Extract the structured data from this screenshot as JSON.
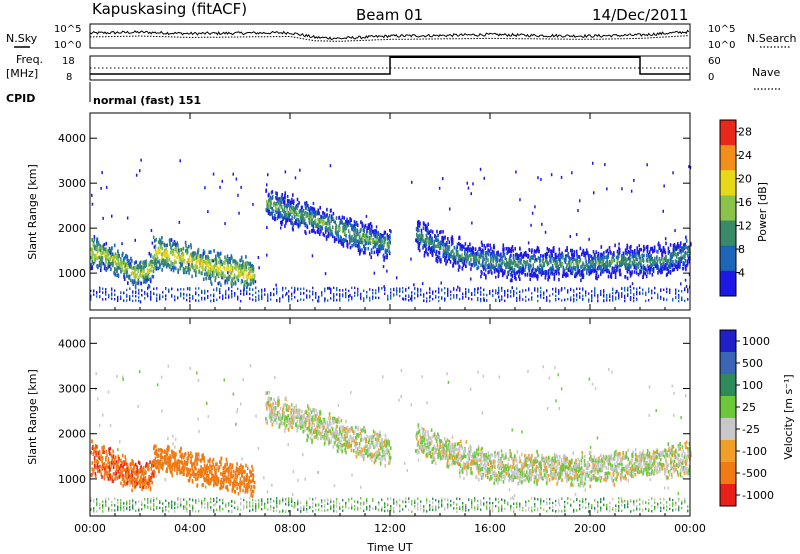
{
  "header": {
    "station": "Kapuskasing (fitACF)",
    "beam": "Beam 01",
    "date": "14/Dec/2011"
  },
  "strips": {
    "nsky_label": "N.Sky",
    "nsearch_label": "N.Search",
    "noise_ticks": [
      "10^5",
      "10^0"
    ],
    "freq_label": "Freq.",
    "freq_unit": "[MHz]",
    "freq_ticks": [
      "18",
      "8"
    ],
    "nave_label": "Nave",
    "nave_ticks": [
      "60",
      "0"
    ],
    "cpid_label": "CPID",
    "cpid_value": "normal (fast) 151"
  },
  "panels": {
    "ylabel": "Slant Range [km]",
    "xlabel": "Time UT"
  },
  "colorbars": {
    "power_label": "Power [dB]",
    "velocity_label": "Velocity [m s⁻¹]"
  },
  "chart_data": [
    {
      "type": "line",
      "panel": "noise",
      "series": [
        {
          "name": "N.Sky",
          "style": "solid"
        },
        {
          "name": "N.Search",
          "style": "dotted"
        }
      ],
      "x": [
        0,
        2,
        4,
        6,
        8,
        9,
        10,
        12,
        14,
        16,
        18,
        20,
        22,
        24
      ],
      "sky": [
        3.1,
        3.3,
        3.0,
        3.1,
        3.2,
        2.2,
        2.0,
        2.5,
        2.6,
        2.8,
        2.6,
        2.5,
        2.7,
        3.4
      ],
      "search": [
        2.3,
        2.5,
        2.2,
        2.3,
        2.4,
        1.5,
        1.4,
        1.8,
        1.9,
        2.0,
        1.9,
        1.8,
        2.0,
        2.6
      ],
      "ylim": [
        0,
        5
      ],
      "yscale": "log"
    },
    {
      "type": "line",
      "panel": "frequency",
      "series": [
        {
          "name": "Freq.",
          "style": "solid"
        },
        {
          "name": "Nave",
          "style": "dotted"
        }
      ],
      "x": [
        0,
        12,
        12,
        22,
        22,
        24
      ],
      "freq_mhz": [
        10.5,
        10.5,
        17.5,
        17.5,
        10.5,
        10.5
      ],
      "nave": [
        30,
        30,
        30,
        30,
        30,
        30
      ],
      "ylim": [
        8,
        18
      ],
      "y2lim": [
        0,
        60
      ]
    },
    {
      "type": "heatmap",
      "panel": "power",
      "xlabel": "Time UT",
      "ylabel": "Slant Range [km]",
      "xlim": [
        0,
        24
      ],
      "ylim": [
        180,
        4560
      ],
      "xticks": [
        "00:00",
        "04:00",
        "08:00",
        "12:00",
        "16:00",
        "20:00",
        "00:00"
      ],
      "xtick_values": [
        0,
        4,
        8,
        12,
        16,
        20,
        24
      ],
      "yticks": [
        1000,
        2000,
        3000,
        4000
      ],
      "colorbar": {
        "label": "Power [dB]",
        "ticks": [
          4,
          8,
          12,
          16,
          20,
          24,
          28
        ],
        "range": [
          0,
          30
        ]
      },
      "colors": [
        "#1e18e6",
        "#1c66b8",
        "#3a8a6a",
        "#8ac24a",
        "#e8d81a",
        "#f28e1a",
        "#e8281a"
      ],
      "echo_bands": [
        {
          "t": [
            0.0,
            0.5,
            1.0,
            1.5,
            2.0,
            2.5
          ],
          "range_km": [
            1500,
            1450,
            1300,
            1100,
            1000,
            1200
          ],
          "level_db": 18
        },
        {
          "t": [
            2.5,
            3.0,
            3.5,
            4.0,
            5.0,
            6.0,
            6.5
          ],
          "range_km": [
            1500,
            1450,
            1400,
            1300,
            1150,
            1050,
            1000
          ],
          "level_db": 20
        },
        {
          "t": [
            7.0,
            8.0,
            9.0,
            10.0,
            11.0,
            12.0
          ],
          "range_km": [
            2600,
            2400,
            2200,
            2000,
            1800,
            1650
          ],
          "level_db": 14
        },
        {
          "t": [
            13.0,
            14.0,
            15.0,
            16.0,
            17.0,
            18.0,
            19.0,
            20.0,
            21.0,
            22.0,
            23.0,
            24.0
          ],
          "range_km": [
            1900,
            1600,
            1400,
            1300,
            1250,
            1250,
            1250,
            1250,
            1300,
            1300,
            1350,
            1500
          ],
          "level_db": 12
        }
      ],
      "ground_scatter_km": [
        400,
        700
      ]
    },
    {
      "type": "heatmap",
      "panel": "velocity",
      "xlabel": "Time UT",
      "ylabel": "Slant Range [km]",
      "xlim": [
        0,
        24
      ],
      "ylim": [
        180,
        4560
      ],
      "xticks": [
        "00:00",
        "04:00",
        "08:00",
        "12:00",
        "16:00",
        "20:00",
        "00:00"
      ],
      "xtick_values": [
        0,
        4,
        8,
        12,
        16,
        20,
        24
      ],
      "yticks": [
        1000,
        2000,
        3000,
        4000
      ],
      "colorbar": {
        "label": "Velocity [m s⁻¹]",
        "ticks": [
          1000,
          500,
          100,
          25,
          -25,
          -100,
          -500,
          -1000
        ]
      },
      "colors": [
        "#2020c8",
        "#3a64b4",
        "#2e8a5a",
        "#6ac83a",
        "#c8c8c8",
        "#f0a028",
        "#f07a14",
        "#e8201a"
      ],
      "echo_bands": [
        {
          "t": [
            0.0,
            1.0,
            2.0,
            2.5
          ],
          "range_km": [
            1500,
            1300,
            1050,
            1200
          ],
          "velocity_ms": -400
        },
        {
          "t": [
            2.5,
            3.5,
            4.0,
            5.0,
            6.0,
            6.5
          ],
          "range_km": [
            1500,
            1400,
            1300,
            1150,
            1050,
            1000
          ],
          "velocity_ms": -300
        },
        {
          "t": [
            7.0,
            9.0,
            11.0,
            12.0
          ],
          "range_km": [
            2600,
            2200,
            1800,
            1650
          ],
          "velocity_ms": 0
        },
        {
          "t": [
            13.0,
            16.0,
            20.0,
            24.0
          ],
          "range_km": [
            1900,
            1300,
            1250,
            1500
          ],
          "velocity_ms": 0
        }
      ],
      "ground_scatter_km": [
        300,
        600
      ]
    }
  ]
}
